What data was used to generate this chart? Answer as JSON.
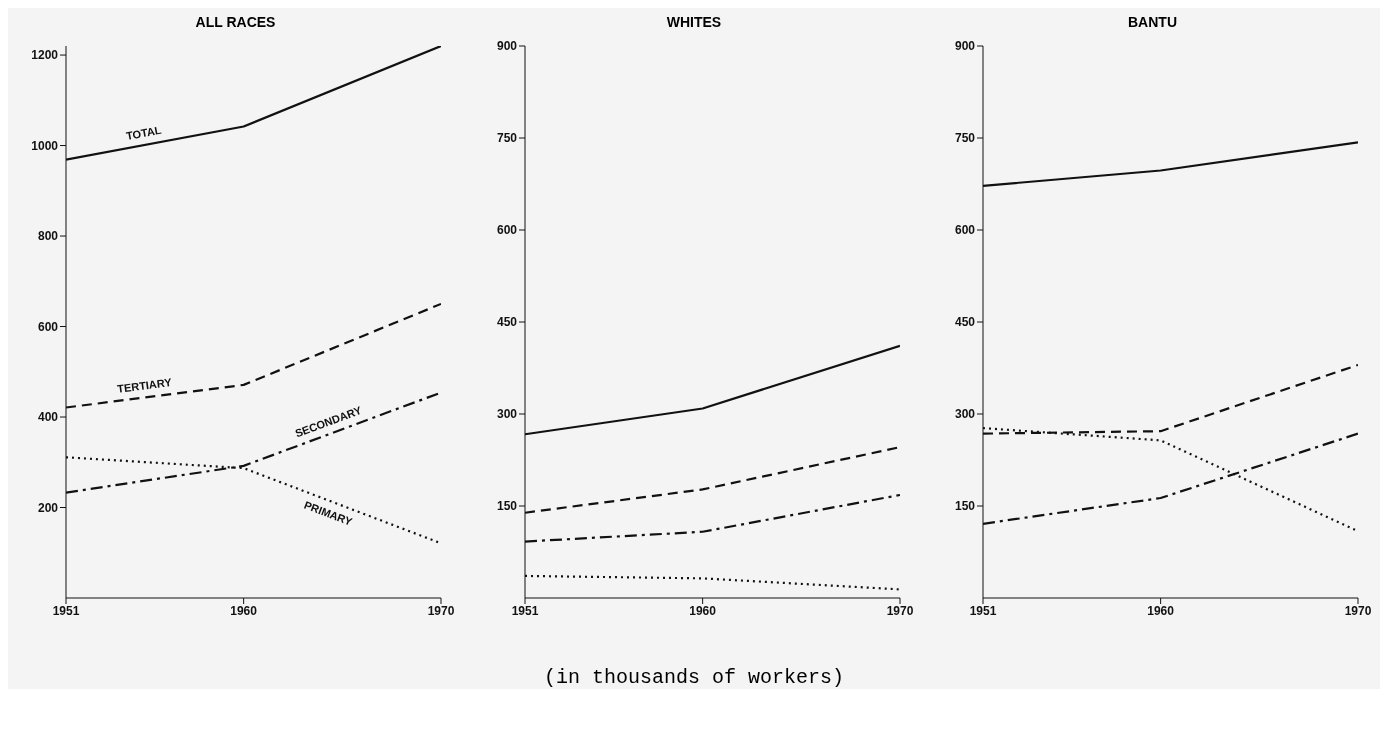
{
  "chart_data": [
    {
      "type": "line",
      "title": "ALL RACES",
      "x": [
        1951,
        1960,
        1970
      ],
      "xlim": [
        1951,
        1970
      ],
      "xticks": [
        1951,
        1960,
        1970
      ],
      "ylim": [
        0,
        1220
      ],
      "yticks": [
        200,
        400,
        600,
        800,
        1000,
        1200
      ],
      "marker": "none",
      "annotations": [
        "(in thousands of workers)"
      ],
      "series": [
        {
          "name": "TOTAL",
          "color": "#111111",
          "line_style": "solid",
          "values": [
            969,
            1042,
            1220
          ]
        },
        {
          "name": "TERTIARY",
          "color": "#111111",
          "line_style": "dashed",
          "values": [
            421,
            471,
            650
          ]
        },
        {
          "name": "SECONDARY",
          "color": "#111111",
          "line_style": "dashdot",
          "values": [
            233,
            292,
            454
          ]
        },
        {
          "name": "PRIMARY",
          "color": "#111111",
          "line_style": "dotted",
          "values": [
            311,
            287,
            121
          ]
        }
      ]
    },
    {
      "type": "line",
      "title": "WHITES",
      "x": [
        1951,
        1960,
        1970
      ],
      "xlim": [
        1951,
        1970
      ],
      "xticks": [
        1951,
        1960,
        1970
      ],
      "ylim": [
        0,
        900
      ],
      "yticks": [
        150,
        300,
        450,
        600,
        750,
        900
      ],
      "marker": "none",
      "series": [
        {
          "color": "#111111",
          "line_style": "solid",
          "values": [
            267,
            309,
            411
          ]
        },
        {
          "color": "#111111",
          "line_style": "dashed",
          "values": [
            139,
            177,
            246
          ]
        },
        {
          "color": "#111111",
          "line_style": "dashdot",
          "values": [
            92,
            108,
            168
          ]
        },
        {
          "color": "#111111",
          "line_style": "dotted",
          "values": [
            36,
            32,
            14
          ]
        }
      ]
    },
    {
      "type": "line",
      "title": "BANTU",
      "x": [
        1951,
        1960,
        1970
      ],
      "xlim": [
        1951,
        1970
      ],
      "xticks": [
        1951,
        1960,
        1970
      ],
      "ylim": [
        0,
        900
      ],
      "yticks": [
        150,
        300,
        450,
        600,
        750,
        900
      ],
      "marker": "none",
      "series": [
        {
          "color": "#111111",
          "line_style": "solid",
          "values": [
            672,
            697,
            743
          ]
        },
        {
          "color": "#111111",
          "line_style": "dashed",
          "values": [
            268,
            272,
            380
          ]
        },
        {
          "color": "#111111",
          "line_style": "dashdot",
          "values": [
            121,
            163,
            268
          ]
        },
        {
          "color": "#111111",
          "line_style": "dotted",
          "values": [
            277,
            257,
            109
          ]
        }
      ]
    }
  ]
}
